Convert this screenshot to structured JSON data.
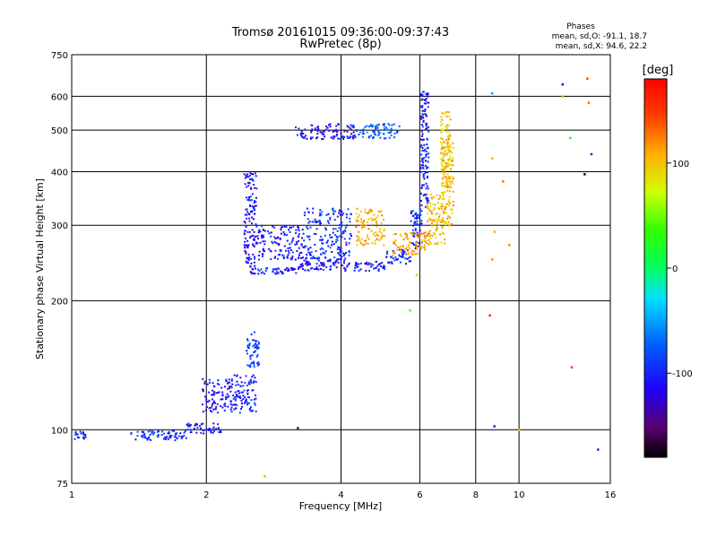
{
  "header": {
    "title_line1": "Tromsø 20161015 09:36:00-09:37:43",
    "title_line2": "RwPretec (8p)"
  },
  "phases_box": {
    "title": "Phases",
    "line1": "mean, sd,O: -91.1, 18.7",
    "line2": "mean, sd,X:  94.6, 22.2"
  },
  "colorbar": {
    "label": "[deg]",
    "range": [
      -180,
      180
    ],
    "ticks": [
      {
        "value": 100,
        "label": "100"
      },
      {
        "value": 0,
        "label": "0"
      },
      {
        "value": -100,
        "label": "-100"
      }
    ]
  },
  "chart_data": {
    "type": "scatter",
    "title": "Tromsø 20161015 09:36:00-09:37:43",
    "subtitle": "RwPretec (8p)",
    "xlabel": "Frequency [MHz]",
    "ylabel": "Stationary phase Virtual Height [km]",
    "x_scale": "log",
    "y_scale": "log",
    "xlim": [
      1,
      16
    ],
    "ylim": [
      75,
      750
    ],
    "x_ticks": [
      1,
      2,
      4,
      6,
      8,
      10,
      16
    ],
    "y_ticks": [
      75,
      100,
      200,
      300,
      400,
      500,
      600,
      750
    ],
    "x_gridlines": [
      2,
      4,
      6,
      8,
      10
    ],
    "y_gridlines": [
      100,
      200,
      300,
      400,
      500,
      600
    ],
    "grid": true,
    "color_by": "phase [deg]",
    "clusters": [
      {
        "series": "O",
        "x": [
          1.0,
          1.07
        ],
        "y": [
          95,
          100
        ],
        "phase": -100
      },
      {
        "series": "O",
        "x": [
          1.35,
          1.8
        ],
        "y": [
          95,
          100
        ],
        "phase": -95
      },
      {
        "series": "O",
        "x": [
          1.8,
          2.15
        ],
        "y": [
          98,
          104
        ],
        "phase": -105
      },
      {
        "series": "O",
        "x": [
          1.95,
          2.3
        ],
        "y": [
          110,
          132
        ],
        "phase": -110
      },
      {
        "series": "O",
        "x": [
          2.3,
          2.58
        ],
        "y": [
          110,
          135
        ],
        "phase": -100
      },
      {
        "series": "O",
        "x": [
          2.45,
          2.62
        ],
        "y": [
          140,
          170
        ],
        "phase": -85
      },
      {
        "series": "O",
        "x": [
          2.42,
          2.58
        ],
        "y": [
          240,
          400
        ],
        "phase": -110
      },
      {
        "series": "O",
        "x": [
          2.58,
          3.3
        ],
        "y": [
          250,
          300
        ],
        "phase": -105
      },
      {
        "series": "O",
        "x": [
          3.3,
          4.2
        ],
        "y": [
          250,
          330
        ],
        "phase": -95
      },
      {
        "series": "O",
        "x": [
          3.15,
          4.3
        ],
        "y": [
          478,
          520
        ],
        "phase": -110
      },
      {
        "series": "O",
        "x": [
          4.3,
          5.4
        ],
        "y": [
          480,
          520
        ],
        "phase": -75
      },
      {
        "series": "O",
        "x": [
          2.5,
          3.2
        ],
        "y": [
          232,
          240
        ],
        "phase": -105
      },
      {
        "series": "O",
        "x": [
          3.2,
          4.2
        ],
        "y": [
          236,
          250
        ],
        "phase": -110
      },
      {
        "series": "O",
        "x": [
          4.2,
          5.0
        ],
        "y": [
          236,
          248
        ],
        "phase": -105
      },
      {
        "series": "O",
        "x": [
          5.0,
          5.7
        ],
        "y": [
          245,
          265
        ],
        "phase": -100
      },
      {
        "series": "O",
        "x": [
          5.7,
          6.05
        ],
        "y": [
          265,
          330
        ],
        "phase": -100
      },
      {
        "series": "O",
        "x": [
          6.0,
          6.25
        ],
        "y": [
          330,
          620
        ],
        "phase": -105
      },
      {
        "series": "X",
        "x": [
          4.3,
          5.0
        ],
        "y": [
          270,
          330
        ],
        "phase": 110
      },
      {
        "series": "X",
        "x": [
          5.2,
          6.2
        ],
        "y": [
          255,
          290
        ],
        "phase": 110
      },
      {
        "series": "X",
        "x": [
          6.2,
          6.8
        ],
        "y": [
          270,
          360
        ],
        "phase": 100
      },
      {
        "series": "X",
        "x": [
          6.65,
          7.0
        ],
        "y": [
          360,
          560
        ],
        "phase": 95
      },
      {
        "series": "X",
        "x": [
          6.7,
          7.1
        ],
        "y": [
          300,
          480
        ],
        "phase": 105
      }
    ],
    "scattered_points": [
      {
        "x": 8.7,
        "y": 610,
        "phase": -50
      },
      {
        "x": 8.7,
        "y": 430,
        "phase": 110
      },
      {
        "x": 8.8,
        "y": 290,
        "phase": 110
      },
      {
        "x": 8.7,
        "y": 250,
        "phase": 120
      },
      {
        "x": 8.6,
        "y": 185,
        "phase": 160
      },
      {
        "x": 8.8,
        "y": 102,
        "phase": -100
      },
      {
        "x": 9.2,
        "y": 380,
        "phase": 130
      },
      {
        "x": 9.5,
        "y": 270,
        "phase": 120
      },
      {
        "x": 12.5,
        "y": 640,
        "phase": -110
      },
      {
        "x": 12.5,
        "y": 600,
        "phase": 110
      },
      {
        "x": 14.2,
        "y": 660,
        "phase": 140
      },
      {
        "x": 14.3,
        "y": 580,
        "phase": 130
      },
      {
        "x": 13.0,
        "y": 480,
        "phase": 20
      },
      {
        "x": 14.5,
        "y": 440,
        "phase": -100
      },
      {
        "x": 14.0,
        "y": 395,
        "phase": -175
      },
      {
        "x": 13.1,
        "y": 140,
        "phase": 150
      },
      {
        "x": 15.0,
        "y": 90,
        "phase": -100
      },
      {
        "x": 5.7,
        "y": 190,
        "phase": 40
      },
      {
        "x": 5.9,
        "y": 230,
        "phase": 100
      },
      {
        "x": 2.7,
        "y": 78,
        "phase": 110
      },
      {
        "x": 3.2,
        "y": 101,
        "phase": -150
      },
      {
        "x": 10.0,
        "y": 100,
        "phase": 100
      }
    ]
  }
}
